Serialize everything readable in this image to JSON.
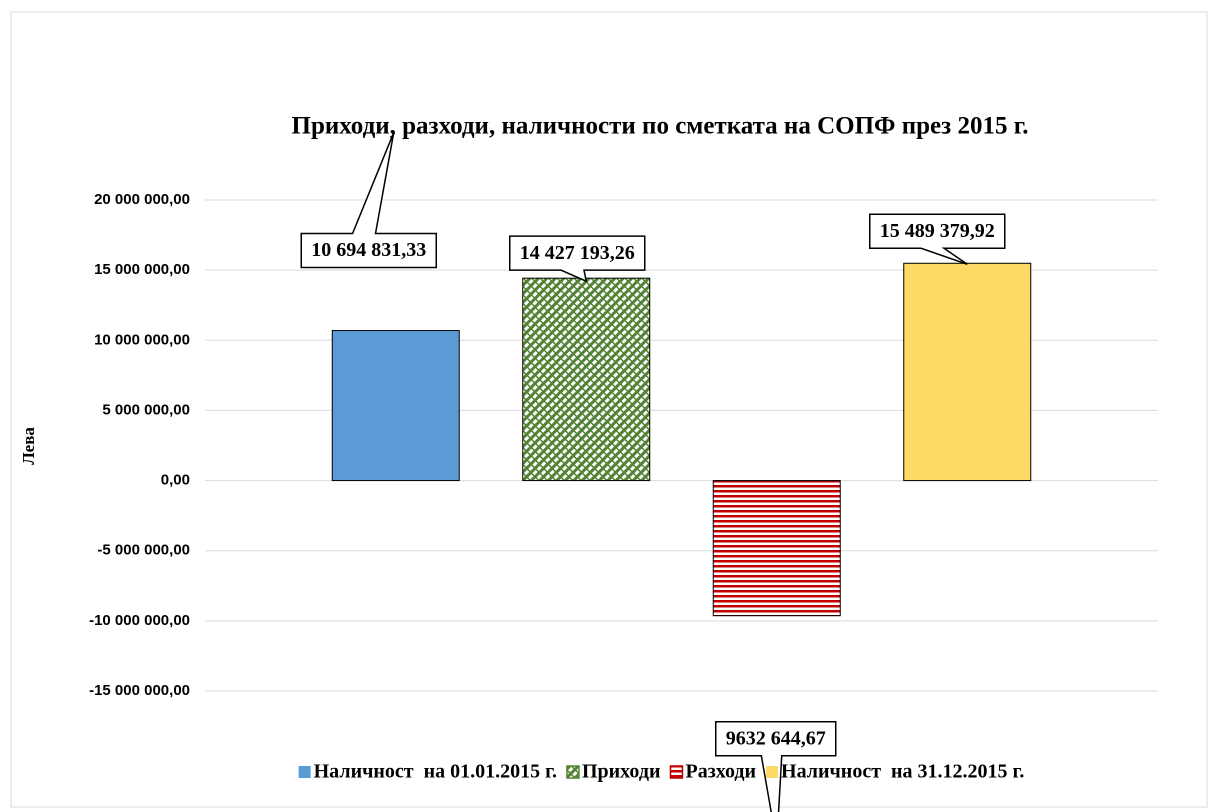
{
  "chart_data": {
    "type": "bar",
    "title": "Приходи, разходи, наличности по сметката на СОПФ през 2015 г.",
    "y_label": "Лева",
    "categories": [
      null
    ],
    "series": [
      {
        "name": "Наличност  на 01.01.2015 г.",
        "color": "#5b9bd5",
        "hatch": "none",
        "values": [
          10694831.33
        ],
        "value_labels": [
          "10 694 831,33"
        ]
      },
      {
        "name": "Приходи",
        "color": "#548235",
        "hatch": "diagonal",
        "values": [
          14427193.26
        ],
        "value_labels": [
          "14 427 193,26"
        ]
      },
      {
        "name": "Разходи",
        "color": "#c00000",
        "hatch": "horizontal",
        "values": [
          -9632644.67
        ],
        "value_labels": [
          "9632 644,67"
        ]
      },
      {
        "name": "Наличност  на 31.12.2015 г.",
        "color": "#ffd966",
        "hatch": "none",
        "values": [
          15489379.92
        ],
        "value_labels": [
          "15 489 379,92"
        ]
      }
    ],
    "ylim": [
      -15000000,
      20000000
    ],
    "yticks": [
      {
        "value": -15000000,
        "label": "-15 000 000,00"
      },
      {
        "value": -10000000,
        "label": "-10 000 000,00"
      },
      {
        "value": -5000000,
        "label": "-5 000 000,00"
      },
      {
        "value": 0,
        "label": "0,00"
      },
      {
        "value": 5000000,
        "label": "5 000 000,00"
      },
      {
        "value": 10000000,
        "label": "10 000 000,00"
      },
      {
        "value": 15000000,
        "label": "15 000 000,00"
      },
      {
        "value": 20000000,
        "label": "20 000 000,00"
      }
    ],
    "grid": true,
    "legend": "bottom"
  }
}
